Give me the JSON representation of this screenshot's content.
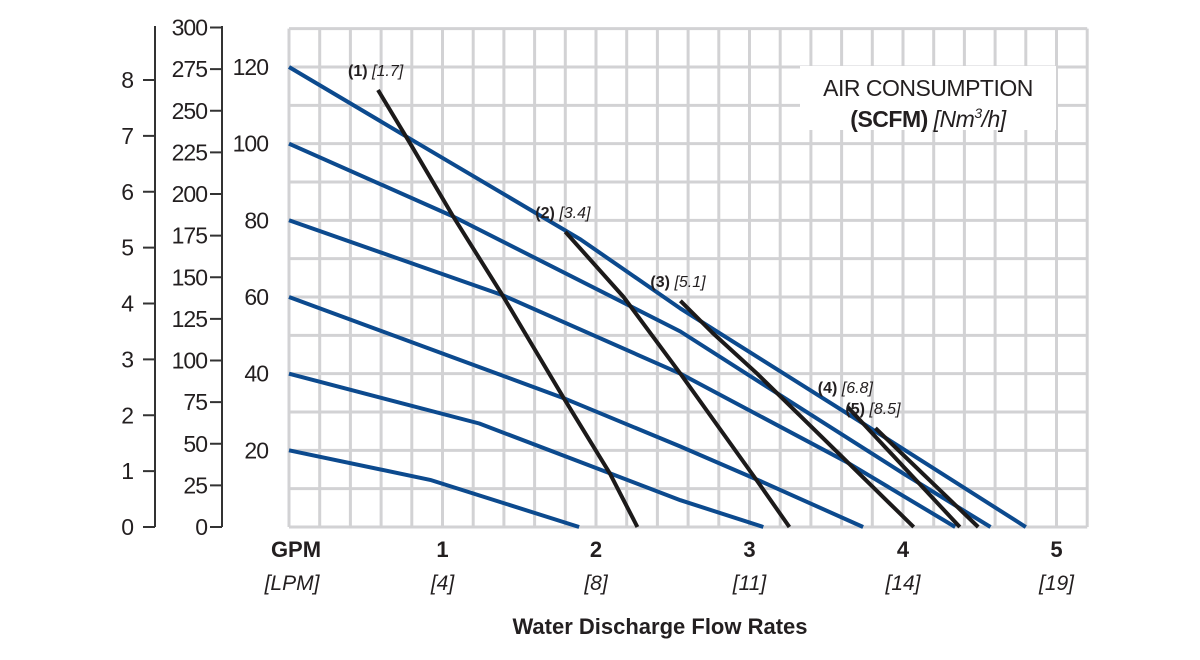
{
  "chart_data": {
    "type": "line",
    "title": "",
    "legend_title": {
      "line1": "AIR CONSUMPTION",
      "unit_bold": "(SCFM)",
      "unit_metric": "[Nm",
      "unit_sup": "3",
      "unit_metric_end": "/h]"
    },
    "xlabel": "Water Discharge Flow Rates",
    "x_unit": "GPM",
    "x_unit_metric": "[LPM]",
    "xlim": [
      0,
      5.2
    ],
    "x_ticks": [
      {
        "value": 1,
        "label": "1",
        "metric": "[4]"
      },
      {
        "value": 2,
        "label": "2",
        "metric": "[8]"
      },
      {
        "value": 3,
        "label": "3",
        "metric": "[11]"
      },
      {
        "value": 4,
        "label": "4",
        "metric": "[14]"
      },
      {
        "value": 5,
        "label": "5",
        "metric": "[19]"
      }
    ],
    "y_axes": [
      {
        "ticks": [
          "0",
          "1",
          "2",
          "3",
          "4",
          "5",
          "6",
          "7",
          "8"
        ],
        "values": [
          0,
          1,
          2,
          3,
          4,
          5,
          6,
          7,
          8
        ],
        "range": [
          0,
          9.0
        ]
      },
      {
        "ticks": [
          "0",
          "25",
          "50",
          "75",
          "100",
          "125",
          "150",
          "175",
          "200",
          "225",
          "250",
          "275",
          "300"
        ],
        "values": [
          0,
          25,
          50,
          75,
          100,
          125,
          150,
          175,
          200,
          225,
          250,
          275,
          300
        ],
        "range": [
          0,
          300
        ]
      },
      {
        "ticks": [
          "20",
          "40",
          "60",
          "80",
          "100",
          "120"
        ],
        "values": [
          20,
          40,
          60,
          80,
          100,
          120
        ],
        "range": [
          0,
          130
        ]
      }
    ],
    "grid": true,
    "grid_step": {
      "x": 0.2,
      "y": 10
    },
    "colors": {
      "pressure_curves": "#0c4a8e",
      "air_curves": "#1c1a1a",
      "grid": "#d2d2d4",
      "axis": "#333333"
    },
    "pressure_curves": [
      {
        "points": [
          [
            0,
            120
          ],
          [
            0.8,
            101
          ],
          [
            1.9,
            75
          ],
          [
            2.55,
            57
          ],
          [
            3.74,
            27
          ],
          [
            4.8,
            0
          ]
        ]
      },
      {
        "points": [
          [
            0,
            100
          ],
          [
            1.07,
            81
          ],
          [
            2.55,
            51
          ],
          [
            2.98,
            40
          ],
          [
            4.0,
            14
          ],
          [
            4.57,
            0
          ]
        ]
      },
      {
        "points": [
          [
            0,
            80
          ],
          [
            1.39,
            60.5
          ],
          [
            2.55,
            40
          ],
          [
            3.63,
            17
          ],
          [
            4.34,
            0
          ]
        ]
      },
      {
        "points": [
          [
            0,
            60
          ],
          [
            1.79,
            33.6
          ],
          [
            2.55,
            21
          ],
          [
            3.07,
            12
          ],
          [
            3.74,
            0
          ]
        ]
      },
      {
        "points": [
          [
            0,
            40
          ],
          [
            1.24,
            27
          ],
          [
            2.09,
            14
          ],
          [
            2.55,
            7
          ],
          [
            3.09,
            0
          ]
        ]
      },
      {
        "points": [
          [
            0,
            20
          ],
          [
            0.92,
            12.3
          ],
          [
            1.89,
            0
          ]
        ]
      }
    ],
    "air_consumption_curves": [
      {
        "label": "(1)",
        "metric": "[1.7]",
        "points": [
          [
            0.58,
            114
          ],
          [
            0.79,
            100
          ],
          [
            1.07,
            81
          ],
          [
            1.39,
            60.5
          ],
          [
            1.79,
            33.6
          ],
          [
            2.09,
            14
          ],
          [
            2.27,
            0
          ]
        ]
      },
      {
        "label": "(2)",
        "metric": "[3.4]",
        "points": [
          [
            1.8,
            77
          ],
          [
            2.18,
            60
          ],
          [
            2.55,
            40
          ],
          [
            3.05,
            12
          ],
          [
            3.26,
            0
          ]
        ]
      },
      {
        "label": "(3)",
        "metric": "[5.1]",
        "points": [
          [
            2.55,
            59
          ],
          [
            2.76,
            50.6
          ],
          [
            3.05,
            40
          ],
          [
            3.67,
            15.7
          ],
          [
            4.07,
            0
          ]
        ]
      },
      {
        "label": "(4)",
        "metric": "[6.8]",
        "points": [
          [
            3.64,
            31.3
          ],
          [
            4.37,
            0
          ]
        ]
      },
      {
        "label": "(5)",
        "metric": "[8.5]",
        "points": [
          [
            3.82,
            25.8
          ],
          [
            4.49,
            0
          ]
        ]
      }
    ]
  }
}
